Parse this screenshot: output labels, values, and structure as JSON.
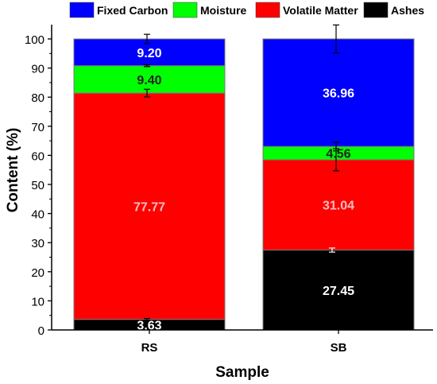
{
  "chart_data": {
    "type": "bar",
    "stacked": true,
    "categories": [
      "RS",
      "SB"
    ],
    "xlabel": "Sample",
    "ylabel": "Content (%)",
    "ylim": [
      0,
      100
    ],
    "yticks": [
      0,
      10,
      20,
      30,
      40,
      50,
      60,
      70,
      80,
      90,
      100
    ],
    "grid": false,
    "legend_position": "top",
    "series": [
      {
        "name": "Ashes",
        "color": "#000000",
        "values": [
          3.63,
          27.45
        ],
        "labels": [
          "3.63",
          "27.45"
        ],
        "error": [
          0.3,
          0.7
        ]
      },
      {
        "name": "Volatile Matter",
        "color": "#ff0000",
        "values": [
          77.77,
          31.04
        ],
        "labels": [
          "77.77",
          "31.04"
        ],
        "error": [
          1.3,
          3.8
        ]
      },
      {
        "name": "Moisture",
        "color": "#00ff00",
        "values": [
          9.4,
          4.56
        ],
        "labels": [
          "9.40",
          "4.56"
        ],
        "error": [
          0.3,
          1.5
        ]
      },
      {
        "name": "Fixed Carbon",
        "color": "#0000ff",
        "values": [
          9.2,
          36.96
        ],
        "labels": [
          "9.20",
          "36.96"
        ],
        "error": [
          1.6,
          4.8
        ]
      }
    ],
    "legend_order": [
      "Fixed Carbon",
      "Moisture",
      "Volatile Matter",
      "Ashes"
    ]
  }
}
